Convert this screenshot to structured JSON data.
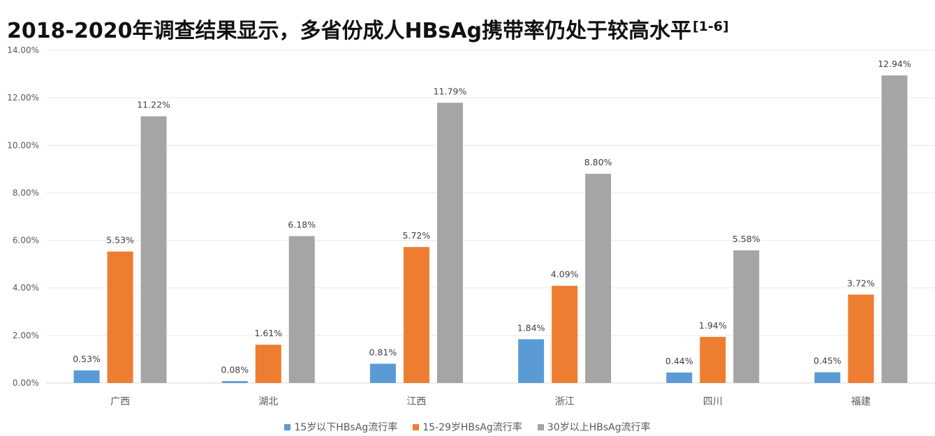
{
  "title": {
    "main": "2018-2020年调查结果显示，多省份成人HBsAg携带率仍处于较高水平",
    "ref": "[1-6]"
  },
  "chart_data": {
    "type": "bar",
    "categories": [
      "广西",
      "湖北",
      "江西",
      "浙江",
      "四川",
      "福建"
    ],
    "series": [
      {
        "name": "15岁以下HBsAg流行率",
        "color": "#5b9bd5",
        "values": [
          0.53,
          0.08,
          0.81,
          1.84,
          0.44,
          0.45
        ],
        "labels": [
          "0.53%",
          "0.08%",
          "0.81%",
          "1.84%",
          "0.44%",
          "0.45%"
        ]
      },
      {
        "name": "15-29岁HBsAg流行率",
        "color": "#ed7d31",
        "values": [
          5.53,
          1.61,
          5.72,
          4.09,
          1.94,
          3.72
        ],
        "labels": [
          "5.53%",
          "1.61%",
          "5.72%",
          "4.09%",
          "1.94%",
          "3.72%"
        ]
      },
      {
        "name": "30岁以上HBsAg流行率",
        "color": "#a5a5a5",
        "values": [
          11.22,
          6.18,
          11.79,
          8.8,
          5.58,
          12.94
        ],
        "labels": [
          "11.22%",
          "6.18%",
          "11.79%",
          "8.80%",
          "5.58%",
          "12.94%"
        ]
      }
    ],
    "yticks": [
      "0.00%",
      "2.00%",
      "4.00%",
      "6.00%",
      "8.00%",
      "10.00%",
      "12.00%",
      "14.00%"
    ],
    "ylim": [
      0,
      14
    ],
    "grid": true,
    "legend_position": "bottom"
  }
}
